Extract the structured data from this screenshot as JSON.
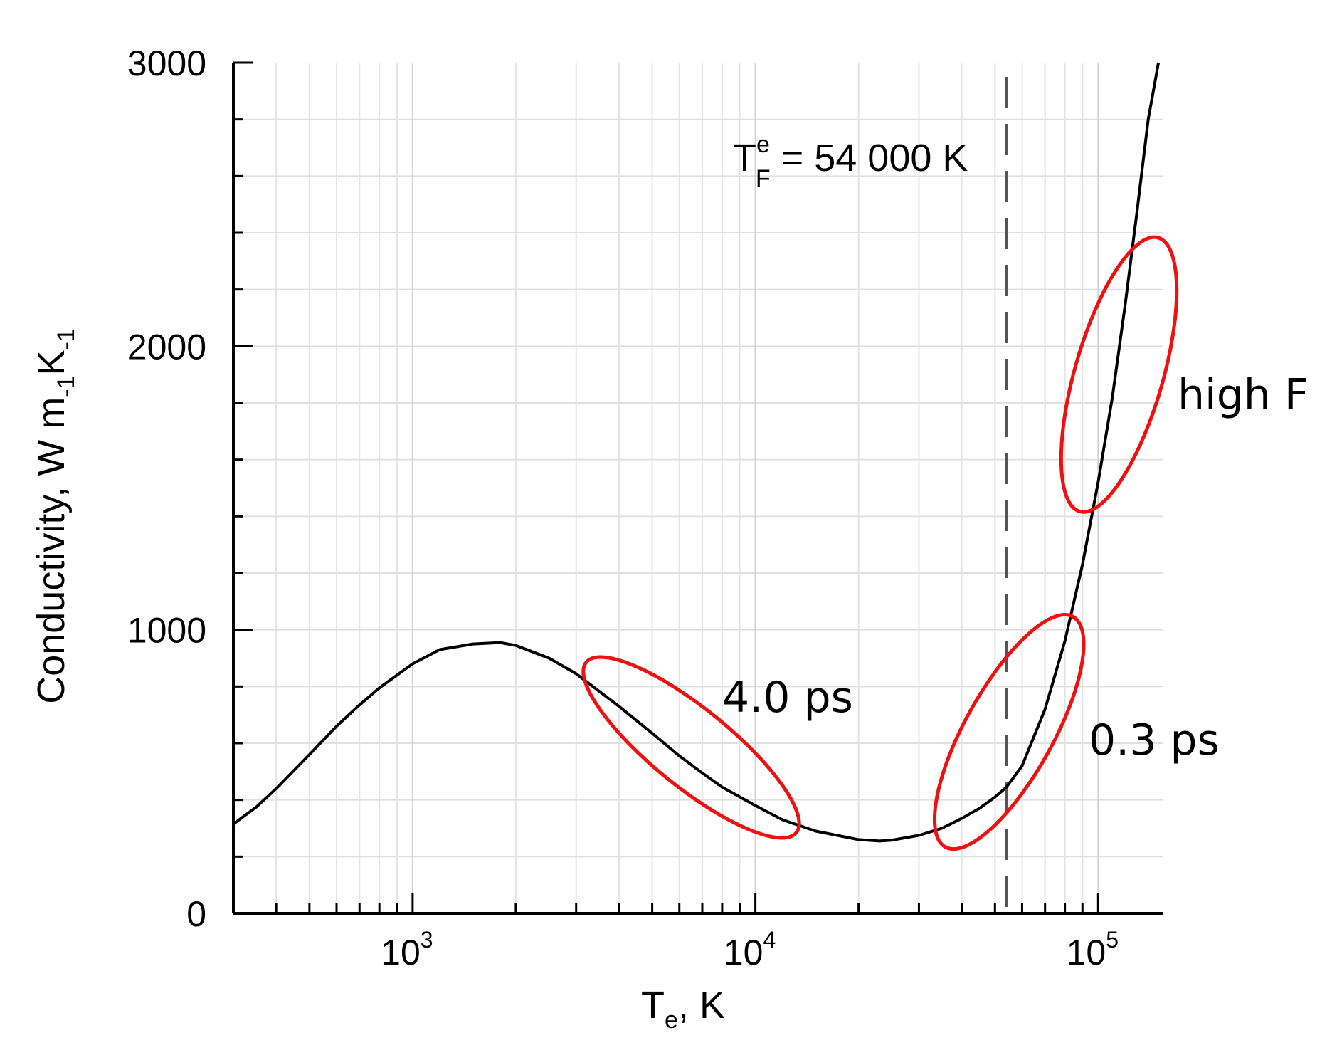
{
  "chart_data": {
    "type": "line",
    "title": "",
    "xlabel": {
      "main": "T",
      "sub": "e",
      "rest": ", K"
    },
    "ylabel": {
      "main": "Conductivity, W m",
      "sub1": "-1",
      "mid": "K",
      "sub2": "-1"
    },
    "xscale": "log",
    "xlim": [
      300,
      155000
    ],
    "ylim": [
      0,
      3000
    ],
    "grid": true,
    "xticks": [
      {
        "value": 1000,
        "base": "10",
        "exp": "3"
      },
      {
        "value": 10000,
        "base": "10",
        "exp": "4"
      },
      {
        "value": 100000,
        "base": "10",
        "exp": "5"
      }
    ],
    "yticks": [
      {
        "value": 0,
        "label": "0"
      },
      {
        "value": 1000,
        "label": "1000"
      },
      {
        "value": 2000,
        "label": "2000"
      },
      {
        "value": 3000,
        "label": "3000"
      }
    ],
    "series": [
      {
        "color": "#000000",
        "x": [
          300,
          350,
          400,
          500,
          600,
          700,
          800,
          1000,
          1200,
          1500,
          1800,
          2000,
          2500,
          3000,
          4000,
          5000,
          6000,
          7000,
          8000,
          10000,
          12000,
          15000,
          20000,
          23000,
          25000,
          30000,
          35000,
          40000,
          45000,
          50000,
          54000,
          60000,
          70000,
          80000,
          90000,
          100000,
          110000,
          120000,
          130000,
          140000,
          150000
        ],
        "y": [
          315,
          375,
          440,
          560,
          660,
          735,
          795,
          880,
          930,
          950,
          955,
          945,
          900,
          845,
          730,
          635,
          555,
          495,
          445,
          380,
          330,
          290,
          260,
          255,
          258,
          275,
          300,
          335,
          370,
          410,
          445,
          520,
          720,
          960,
          1230,
          1520,
          1820,
          2150,
          2480,
          2800,
          3000
        ]
      }
    ],
    "reference_line": {
      "x": 54000,
      "style": "dashed",
      "color": "#555555"
    },
    "annotations": {
      "fermi": {
        "T": "T",
        "sup": "e",
        "sub": "F",
        "rest": " = 54 000 K"
      },
      "label_40ps": "4.0 ps",
      "label_03ps": "0.3 ps",
      "label_highF": "high F"
    },
    "ellipse_color": "#ee1111",
    "highlight_regions": [
      {
        "label_key": "label_40ps",
        "center": {
          "x": 6500,
          "y": 585
        },
        "x_range": [
          3000,
          13500
        ]
      },
      {
        "label_key": "label_03ps",
        "center": {
          "x": 55000,
          "y": 640
        },
        "x_range": [
          34000,
          90000
        ]
      },
      {
        "label_key": "label_highF",
        "center": {
          "x": 115000,
          "y": 1900
        },
        "x_range": [
          94000,
          140000
        ]
      }
    ]
  }
}
